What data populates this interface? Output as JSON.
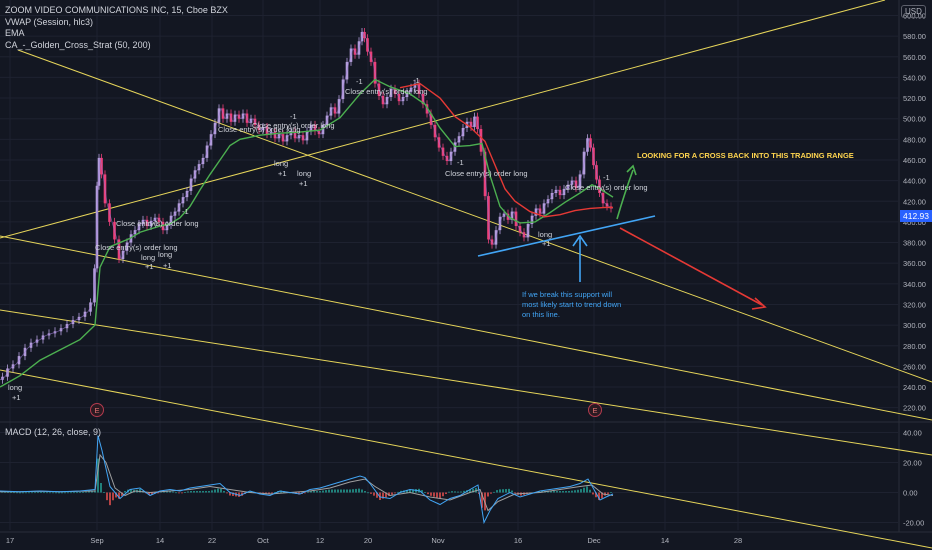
{
  "header": {
    "symbol_line": "ZOOM VIDEO COMMUNICATIONS INC, 15, Cboe BZX",
    "vwap": "VWAP (Session, hlc3)",
    "ema": "EMA",
    "strategy": "CA_-_Golden_Cross_Strat (50, 200)"
  },
  "currency_button": "USD",
  "last_price": "412.93",
  "macd_label": "MACD (12, 26, close, 9)",
  "colors": {
    "background": "#131722",
    "candle_up": "#b39ddb",
    "candle_down": "#ec407a",
    "ema_fast": "#4caf50",
    "ema_slow": "#e53935",
    "trendline": "#e6d55a",
    "support": "#42a5f5",
    "arrow_up": "#4caf50",
    "arrow_down": "#e53935",
    "macd_line": "#42a5f5",
    "signal_line": "#a0a0a0"
  },
  "chart_data": {
    "type": "line",
    "price_axis": {
      "ylim": [
        210,
        615
      ],
      "ticks": [
        "600.00",
        "580.00",
        "560.00",
        "540.00",
        "520.00",
        "500.00",
        "480.00",
        "460.00",
        "440.00",
        "420.00",
        "400.00",
        "380.00",
        "360.00",
        "340.00",
        "320.00",
        "300.00",
        "280.00",
        "260.00",
        "240.00",
        "220.00"
      ]
    },
    "macd_axis": {
      "ylim": [
        -25,
        45
      ],
      "ticks": [
        "40.00",
        "20.00",
        "0.00",
        "-20.00"
      ]
    },
    "x_axis": {
      "labels": [
        "17",
        "Sep",
        "14",
        "22",
        "Oct",
        "12",
        "20",
        "Nov",
        "16",
        "Dec",
        "14",
        "28"
      ]
    },
    "price_series": {
      "name": "",
      "points": [
        [
          0,
          247
        ],
        [
          5,
          250
        ],
        [
          10,
          258
        ],
        [
          16,
          262
        ],
        [
          22,
          270
        ],
        [
          28,
          278
        ],
        [
          34,
          283
        ],
        [
          40,
          286
        ],
        [
          46,
          290
        ],
        [
          52,
          292
        ],
        [
          58,
          294
        ],
        [
          64,
          297
        ],
        [
          70,
          301
        ],
        [
          76,
          305
        ],
        [
          82,
          308
        ],
        [
          88,
          313
        ],
        [
          93,
          322
        ],
        [
          96,
          355
        ],
        [
          98,
          435
        ],
        [
          100,
          462
        ],
        [
          103,
          446
        ],
        [
          107,
          418
        ],
        [
          112,
          400
        ],
        [
          117,
          383
        ],
        [
          121,
          364
        ],
        [
          125,
          372
        ],
        [
          129,
          380
        ],
        [
          133,
          388
        ],
        [
          137,
          392
        ],
        [
          141,
          398
        ],
        [
          145,
          402
        ],
        [
          149,
          396
        ],
        [
          153,
          401
        ],
        [
          157,
          404
        ],
        [
          161,
          400
        ],
        [
          165,
          392
        ],
        [
          169,
          397
        ],
        [
          173,
          406
        ],
        [
          177,
          410
        ],
        [
          181,
          418
        ],
        [
          185,
          424
        ],
        [
          189,
          430
        ],
        [
          193,
          442
        ],
        [
          197,
          450
        ],
        [
          201,
          456
        ],
        [
          205,
          462
        ],
        [
          209,
          474
        ],
        [
          213,
          485
        ],
        [
          217,
          496
        ],
        [
          221,
          510
        ],
        [
          225,
          500
        ],
        [
          229,
          505
        ],
        [
          233,
          497
        ],
        [
          237,
          504
        ],
        [
          241,
          500
        ],
        [
          245,
          505
        ],
        [
          249,
          496
        ],
        [
          253,
          500
        ],
        [
          257,
          494
        ],
        [
          261,
          489
        ],
        [
          265,
          492
        ],
        [
          269,
          485
        ],
        [
          273,
          487
        ],
        [
          277,
          481
        ],
        [
          281,
          485
        ],
        [
          285,
          478
        ],
        [
          289,
          484
        ],
        [
          293,
          488
        ],
        [
          297,
          481
        ],
        [
          301,
          484
        ],
        [
          305,
          479
        ],
        [
          309,
          488
        ],
        [
          313,
          494
        ],
        [
          317,
          488
        ],
        [
          321,
          485
        ],
        [
          325,
          494
        ],
        [
          329,
          503
        ],
        [
          333,
          511
        ],
        [
          337,
          505
        ],
        [
          341,
          519
        ],
        [
          345,
          538
        ],
        [
          349,
          555
        ],
        [
          353,
          568
        ],
        [
          357,
          562
        ],
        [
          361,
          575
        ],
        [
          363,
          584
        ],
        [
          366,
          578
        ],
        [
          369,
          565
        ],
        [
          373,
          555
        ],
        [
          377,
          534
        ],
        [
          381,
          522
        ],
        [
          385,
          514
        ],
        [
          389,
          521
        ],
        [
          393,
          529
        ],
        [
          397,
          524
        ],
        [
          401,
          517
        ],
        [
          405,
          521
        ],
        [
          409,
          526
        ],
        [
          413,
          530
        ],
        [
          417,
          534
        ],
        [
          421,
          524
        ],
        [
          425,
          514
        ],
        [
          429,
          505
        ],
        [
          433,
          494
        ],
        [
          437,
          482
        ],
        [
          441,
          472
        ],
        [
          445,
          464
        ],
        [
          449,
          459
        ],
        [
          453,
          468
        ],
        [
          457,
          477
        ],
        [
          461,
          483
        ],
        [
          465,
          491
        ],
        [
          469,
          497
        ],
        [
          473,
          492
        ],
        [
          476,
          502
        ],
        [
          479,
          490
        ],
        [
          483,
          468
        ],
        [
          487,
          425
        ],
        [
          490,
          383
        ],
        [
          494,
          378
        ],
        [
          498,
          392
        ],
        [
          502,
          405
        ],
        [
          506,
          408
        ],
        [
          510,
          402
        ],
        [
          514,
          410
        ],
        [
          518,
          396
        ],
        [
          522,
          390
        ],
        [
          526,
          385
        ],
        [
          530,
          398
        ],
        [
          534,
          406
        ],
        [
          538,
          413
        ],
        [
          542,
          408
        ],
        [
          546,
          418
        ],
        [
          550,
          422
        ],
        [
          554,
          428
        ],
        [
          558,
          431
        ],
        [
          562,
          426
        ],
        [
          566,
          432
        ],
        [
          570,
          436
        ],
        [
          574,
          440
        ],
        [
          578,
          433
        ],
        [
          582,
          446
        ],
        [
          586,
          468
        ],
        [
          589,
          481
        ],
        [
          592,
          472
        ],
        [
          595,
          455
        ],
        [
          598,
          441
        ],
        [
          601,
          428
        ],
        [
          605,
          418
        ],
        [
          609,
          415
        ],
        [
          613,
          413
        ]
      ]
    },
    "ema_fast": [
      [
        0,
        240
      ],
      [
        20,
        251
      ],
      [
        40,
        266
      ],
      [
        60,
        276
      ],
      [
        80,
        286
      ],
      [
        95,
        300
      ],
      [
        100,
        356
      ],
      [
        110,
        376
      ],
      [
        120,
        380
      ],
      [
        130,
        384
      ],
      [
        140,
        390
      ],
      [
        150,
        393
      ],
      [
        160,
        396
      ],
      [
        170,
        398
      ],
      [
        180,
        404
      ],
      [
        190,
        415
      ],
      [
        200,
        431
      ],
      [
        210,
        446
      ],
      [
        220,
        460
      ],
      [
        230,
        474
      ],
      [
        240,
        480
      ],
      [
        260,
        484
      ],
      [
        280,
        486
      ],
      [
        300,
        487
      ],
      [
        320,
        489
      ],
      [
        340,
        501
      ],
      [
        360,
        524
      ],
      [
        375,
        538
      ],
      [
        390,
        531
      ],
      [
        410,
        524
      ],
      [
        425,
        514
      ],
      [
        440,
        491
      ],
      [
        455,
        473
      ],
      [
        470,
        474
      ],
      [
        482,
        476
      ],
      [
        490,
        445
      ],
      [
        500,
        415
      ],
      [
        510,
        404
      ],
      [
        520,
        399
      ],
      [
        535,
        400
      ],
      [
        550,
        409
      ],
      [
        565,
        419
      ],
      [
        580,
        428
      ],
      [
        592,
        436
      ],
      [
        600,
        432
      ],
      [
        613,
        424
      ]
    ],
    "ema_slow": [
      [
        400,
        530
      ],
      [
        420,
        534
      ],
      [
        440,
        520
      ],
      [
        455,
        502
      ],
      [
        470,
        492
      ],
      [
        485,
        478
      ],
      [
        495,
        455
      ],
      [
        505,
        432
      ],
      [
        515,
        420
      ],
      [
        530,
        410
      ],
      [
        545,
        405
      ],
      [
        560,
        407
      ],
      [
        575,
        411
      ],
      [
        590,
        413
      ],
      [
        605,
        414
      ],
      [
        613,
        414
      ]
    ],
    "macd_line": [
      [
        0,
        1
      ],
      [
        20,
        0.5
      ],
      [
        40,
        1
      ],
      [
        60,
        0.5
      ],
      [
        80,
        1
      ],
      [
        95,
        2
      ],
      [
        98,
        38
      ],
      [
        102,
        28
      ],
      [
        110,
        4
      ],
      [
        120,
        -4
      ],
      [
        130,
        2
      ],
      [
        140,
        3
      ],
      [
        150,
        -2
      ],
      [
        160,
        1
      ],
      [
        170,
        2
      ],
      [
        180,
        1
      ],
      [
        190,
        3
      ],
      [
        200,
        4
      ],
      [
        210,
        5
      ],
      [
        220,
        6
      ],
      [
        230,
        0
      ],
      [
        240,
        -2
      ],
      [
        250,
        1
      ],
      [
        260,
        -1
      ],
      [
        270,
        -2
      ],
      [
        280,
        1
      ],
      [
        290,
        0
      ],
      [
        300,
        -1
      ],
      [
        310,
        2
      ],
      [
        320,
        3
      ],
      [
        330,
        5
      ],
      [
        340,
        7
      ],
      [
        350,
        9
      ],
      [
        360,
        11
      ],
      [
        365,
        10
      ],
      [
        370,
        6
      ],
      [
        380,
        -3
      ],
      [
        390,
        -4
      ],
      [
        400,
        0
      ],
      [
        410,
        2
      ],
      [
        420,
        1
      ],
      [
        430,
        -5
      ],
      [
        440,
        -8
      ],
      [
        450,
        -4
      ],
      [
        460,
        -2
      ],
      [
        470,
        2
      ],
      [
        478,
        5
      ],
      [
        484,
        -20
      ],
      [
        490,
        -12
      ],
      [
        498,
        -4
      ],
      [
        510,
        0
      ],
      [
        520,
        -3
      ],
      [
        530,
        -1
      ],
      [
        540,
        1
      ],
      [
        550,
        2
      ],
      [
        560,
        3
      ],
      [
        570,
        4
      ],
      [
        580,
        6
      ],
      [
        588,
        9
      ],
      [
        594,
        2
      ],
      [
        600,
        -5
      ],
      [
        606,
        -3
      ],
      [
        613,
        -1
      ]
    ],
    "signal_line": [
      [
        0,
        0.5
      ],
      [
        20,
        0.5
      ],
      [
        40,
        0.8
      ],
      [
        60,
        0.5
      ],
      [
        80,
        0.8
      ],
      [
        95,
        1
      ],
      [
        100,
        25
      ],
      [
        106,
        20
      ],
      [
        115,
        3
      ],
      [
        125,
        -2
      ],
      [
        135,
        1
      ],
      [
        150,
        0
      ],
      [
        170,
        1
      ],
      [
        190,
        2
      ],
      [
        210,
        4
      ],
      [
        230,
        2
      ],
      [
        250,
        0
      ],
      [
        270,
        -1
      ],
      [
        290,
        0
      ],
      [
        310,
        1
      ],
      [
        330,
        3
      ],
      [
        350,
        7
      ],
      [
        365,
        9
      ],
      [
        375,
        4
      ],
      [
        390,
        -2
      ],
      [
        410,
        0
      ],
      [
        430,
        -3
      ],
      [
        450,
        -5
      ],
      [
        470,
        0
      ],
      [
        480,
        2
      ],
      [
        488,
        -12
      ],
      [
        498,
        -6
      ],
      [
        515,
        -1
      ],
      [
        540,
        0
      ],
      [
        560,
        2
      ],
      [
        580,
        4
      ],
      [
        592,
        5
      ],
      [
        603,
        -1
      ],
      [
        613,
        -2
      ]
    ],
    "trendlines": [
      {
        "from": [
          0,
          370
        ],
        "to": [
          932,
          548
        ]
      },
      {
        "from": [
          0,
          310
        ],
        "to": [
          932,
          455
        ]
      },
      {
        "from": [
          0,
          236
        ],
        "to": [
          932,
          420
        ]
      },
      {
        "from": [
          0,
          238
        ],
        "to": [
          885,
          0
        ]
      },
      {
        "from": [
          18,
          50
        ],
        "to": [
          932,
          382
        ]
      }
    ],
    "support_line": {
      "from": [
        478,
        256
      ],
      "to": [
        655,
        216
      ]
    },
    "annotations": [
      {
        "text": "Close entry(s) order long",
        "x": 345,
        "y": 94
      },
      {
        "text": "Close entry(s) order long",
        "x": 218,
        "y": 132
      },
      {
        "text": "Close entry(s) order long",
        "x": 252,
        "y": 128
      },
      {
        "text": "Close entry(s) order long",
        "x": 116,
        "y": 226
      },
      {
        "text": "Close entry(s) order long",
        "x": 95,
        "y": 250
      },
      {
        "text": "Close entry(s) order long",
        "x": 445,
        "y": 176
      },
      {
        "text": "Close entry(s) order long",
        "x": 565,
        "y": 190
      },
      {
        "text": "LOOKING FOR A CROSS BACK INTO THIS TRADING RANGE",
        "x": 637,
        "y": 158,
        "color": "#ffd54f",
        "bold": true
      },
      {
        "text": "If we break this support will",
        "x": 522,
        "y": 297,
        "color": "#42a5f5"
      },
      {
        "text": "most likely start to trend down",
        "x": 522,
        "y": 307,
        "color": "#42a5f5"
      },
      {
        "text": "on this line.",
        "x": 522,
        "y": 317,
        "color": "#42a5f5"
      },
      {
        "text": "-1",
        "x": 356,
        "y": 84
      },
      {
        "text": "-1",
        "x": 290,
        "y": 119
      },
      {
        "text": "-1",
        "x": 182,
        "y": 214
      },
      {
        "text": "-1",
        "x": 152,
        "y": 226
      },
      {
        "text": "-1",
        "x": 413,
        "y": 83
      },
      {
        "text": "-1",
        "x": 457,
        "y": 165
      },
      {
        "text": "-1",
        "x": 603,
        "y": 180
      },
      {
        "text": "long",
        "x": 274,
        "y": 166
      },
      {
        "text": "+1",
        "x": 278,
        "y": 176
      },
      {
        "text": "long",
        "x": 297,
        "y": 176
      },
      {
        "text": "+1",
        "x": 299,
        "y": 186
      },
      {
        "text": "long",
        "x": 8,
        "y": 390
      },
      {
        "text": "+1",
        "x": 12,
        "y": 400
      },
      {
        "text": "long",
        "x": 141,
        "y": 260
      },
      {
        "text": "+1",
        "x": 145,
        "y": 269
      },
      {
        "text": "long",
        "x": 158,
        "y": 257
      },
      {
        "text": "+1",
        "x": 163,
        "y": 268
      },
      {
        "text": "long",
        "x": 538,
        "y": 237
      },
      {
        "text": "+1",
        "x": 542,
        "y": 246
      }
    ],
    "event_markers": [
      {
        "text": "E",
        "x": 97,
        "y": 410
      },
      {
        "text": "E",
        "x": 595,
        "y": 410
      }
    ]
  }
}
